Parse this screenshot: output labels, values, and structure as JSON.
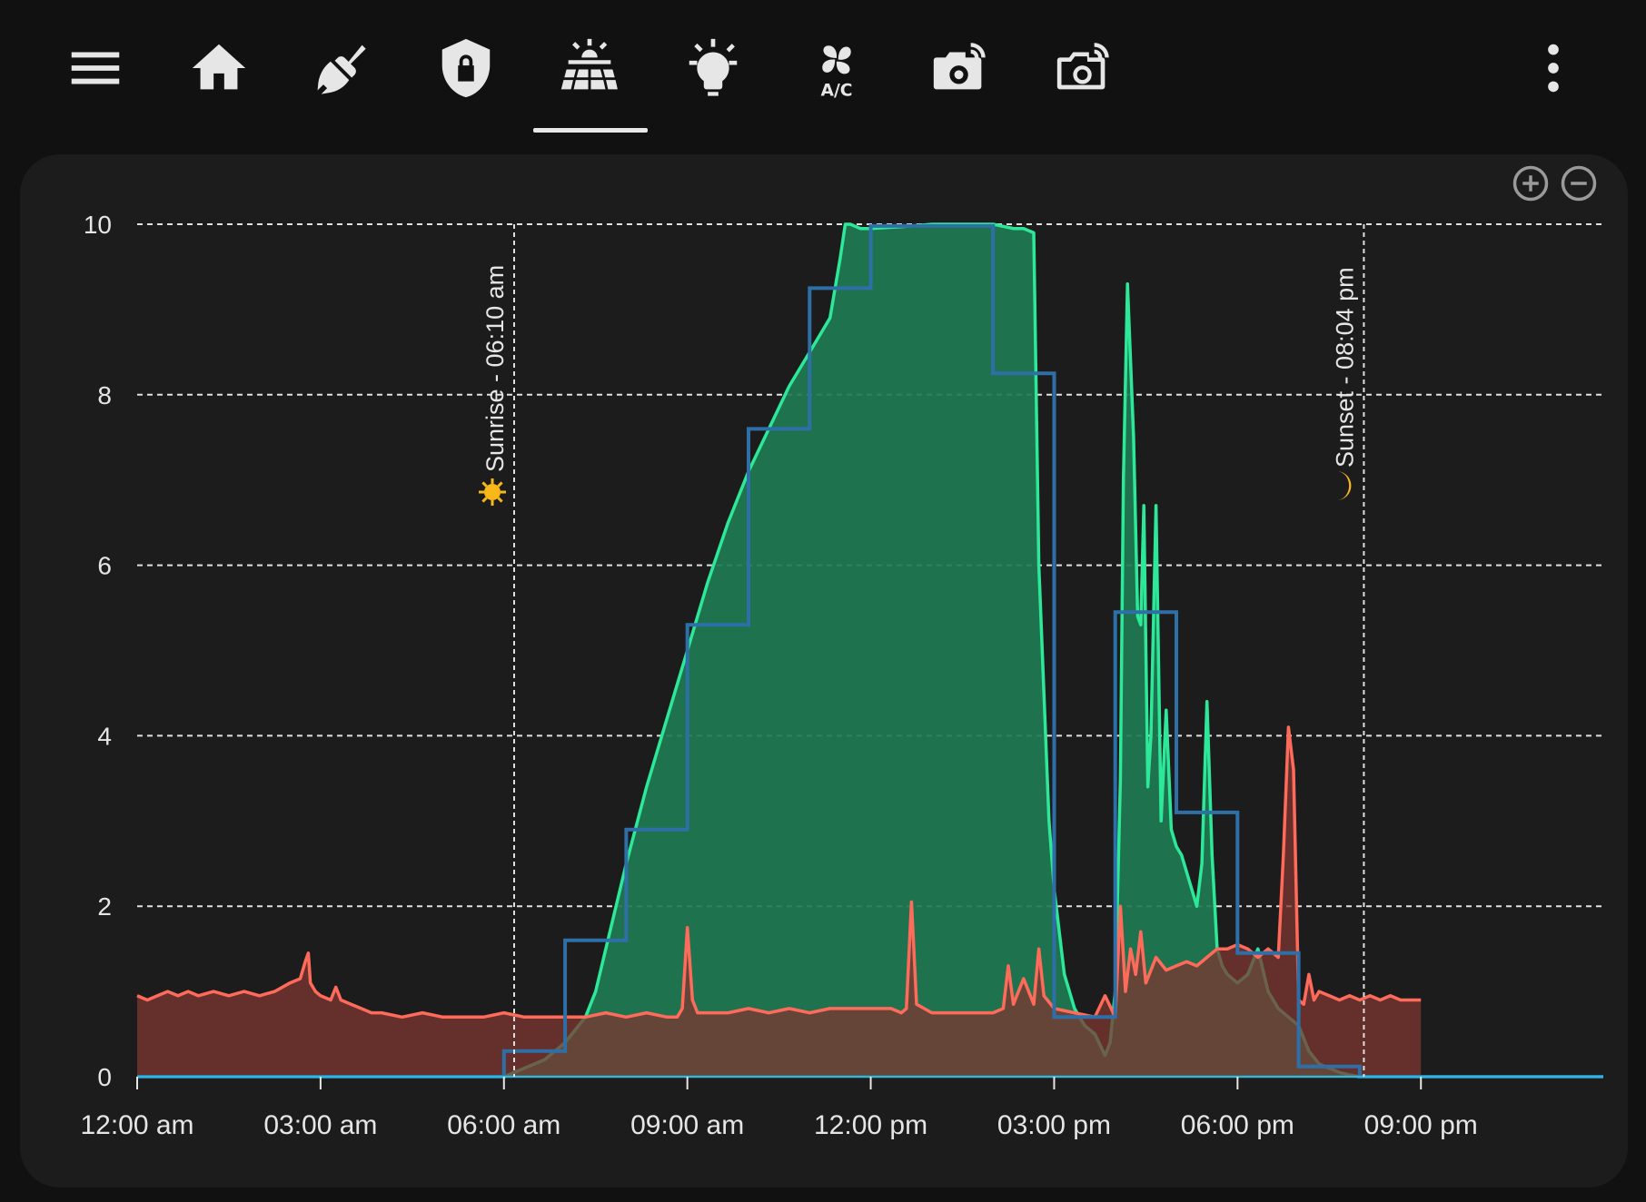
{
  "toolbar": {
    "menu_icon": "hamburger-menu-icon",
    "tabs": [
      {
        "name": "home",
        "icon": "home-icon"
      },
      {
        "name": "cleaning",
        "icon": "broom-icon"
      },
      {
        "name": "security",
        "icon": "shield-lock-icon"
      },
      {
        "name": "solar",
        "icon": "solar-panel-icon",
        "active": true
      },
      {
        "name": "lighting",
        "icon": "lightbulb-icon"
      },
      {
        "name": "climate",
        "icon": "fan-ac-icon"
      },
      {
        "name": "camera-1",
        "icon": "camera-wireless-icon"
      },
      {
        "name": "camera-2",
        "icon": "camera-wireless-outline-icon"
      }
    ],
    "overflow_icon": "more-vertical-icon",
    "accent_color": "#e8e8e8"
  },
  "zoom": {
    "zoom_in_icon": "plus-circle-icon",
    "zoom_out_icon": "minus-circle-icon"
  },
  "chart_data": {
    "type": "area",
    "title": "",
    "xlabel": "",
    "ylabel": "",
    "ylim": [
      0,
      10
    ],
    "xlim": [
      "00:00",
      "23:59"
    ],
    "yticks": [
      "0",
      "2",
      "4",
      "6",
      "8",
      "10"
    ],
    "xticks": [
      "12:00 am",
      "03:00 am",
      "06:00 am",
      "09:00 am",
      "12:00 pm",
      "03:00 pm",
      "06:00 pm",
      "09:00 pm"
    ],
    "grid": true,
    "legend": "none",
    "markers": [
      {
        "label": "Sunrise - 06:10 am",
        "time": "06:10",
        "icon": "sun-icon",
        "color": "#f9b81a"
      },
      {
        "label": "Sunset - 08:04 pm",
        "time": "20:04",
        "icon": "crescent-moon-icon",
        "color": "#f9b81a"
      }
    ],
    "series": [
      {
        "color": "#2ee89a",
        "fill": "#1e7a53",
        "style": "area",
        "x": [
          "00:00",
          "06:00",
          "06:20",
          "06:40",
          "07:00",
          "07:20",
          "07:30",
          "07:40",
          "08:00",
          "08:20",
          "08:40",
          "09:00",
          "09:20",
          "09:40",
          "10:00",
          "10:20",
          "10:40",
          "11:00",
          "11:20",
          "11:30",
          "11:35",
          "11:40",
          "11:50",
          "12:00",
          "12:30",
          "13:00",
          "13:30",
          "14:00",
          "14:20",
          "14:30",
          "14:40",
          "14:45",
          "14:50",
          "14:55",
          "15:00",
          "15:10",
          "15:20",
          "15:30",
          "15:40",
          "15:50",
          "15:55",
          "16:00",
          "16:05",
          "16:08",
          "16:12",
          "16:18",
          "16:22",
          "16:25",
          "16:28",
          "16:32",
          "16:35",
          "16:40",
          "16:45",
          "16:50",
          "16:55",
          "17:00",
          "17:05",
          "17:10",
          "17:15",
          "17:20",
          "17:25",
          "17:30",
          "17:35",
          "17:40",
          "17:45",
          "17:50",
          "18:00",
          "18:10",
          "18:20",
          "18:30",
          "18:40",
          "18:50",
          "19:00",
          "19:10",
          "19:20",
          "19:30",
          "19:40",
          "19:50",
          "20:00",
          "20:04",
          "23:59"
        ],
        "y": [
          0,
          0,
          0.1,
          0.2,
          0.4,
          0.7,
          1.0,
          1.5,
          2.5,
          3.4,
          4.2,
          5.0,
          5.8,
          6.5,
          7.1,
          7.6,
          8.1,
          8.5,
          8.9,
          9.6,
          10.0,
          10.0,
          9.95,
          9.95,
          9.97,
          10.0,
          10.0,
          10.0,
          9.95,
          9.95,
          9.9,
          6.0,
          4.5,
          3.0,
          2.2,
          1.2,
          0.8,
          0.6,
          0.5,
          0.25,
          0.4,
          1.0,
          3.5,
          7.0,
          9.3,
          7.5,
          5.4,
          5.3,
          6.7,
          3.4,
          4.0,
          6.7,
          3.0,
          4.3,
          2.9,
          2.7,
          2.6,
          2.4,
          2.2,
          2.0,
          2.5,
          4.4,
          2.6,
          1.5,
          1.3,
          1.2,
          1.1,
          1.2,
          1.5,
          1.0,
          0.8,
          0.7,
          0.6,
          0.3,
          0.15,
          0.1,
          0.05,
          0.02,
          0,
          0,
          0
        ]
      },
      {
        "color": "#ff6b5b",
        "fill": "#7e3731",
        "style": "area",
        "x": [
          "00:00",
          "00:10",
          "00:20",
          "00:30",
          "00:40",
          "00:50",
          "01:00",
          "01:15",
          "01:30",
          "01:45",
          "02:00",
          "02:15",
          "02:30",
          "02:40",
          "02:45",
          "02:48",
          "02:50",
          "02:55",
          "03:00",
          "03:10",
          "03:15",
          "03:20",
          "03:30",
          "03:40",
          "03:50",
          "04:00",
          "04:20",
          "04:40",
          "05:00",
          "05:20",
          "05:40",
          "06:00",
          "06:20",
          "06:40",
          "07:00",
          "07:20",
          "07:40",
          "08:00",
          "08:20",
          "08:40",
          "08:50",
          "08:55",
          "09:00",
          "09:05",
          "09:10",
          "09:20",
          "09:40",
          "10:00",
          "10:20",
          "10:40",
          "11:00",
          "11:20",
          "11:40",
          "12:00",
          "12:20",
          "12:30",
          "12:35",
          "12:40",
          "12:45",
          "13:00",
          "13:20",
          "13:40",
          "14:00",
          "14:10",
          "14:15",
          "14:20",
          "14:30",
          "14:40",
          "14:45",
          "14:50",
          "15:00",
          "15:20",
          "15:40",
          "15:50",
          "16:00",
          "16:05",
          "16:10",
          "16:15",
          "16:20",
          "16:25",
          "16:30",
          "16:40",
          "16:50",
          "17:00",
          "17:10",
          "17:20",
          "17:30",
          "17:40",
          "17:50",
          "18:00",
          "18:10",
          "18:20",
          "18:30",
          "18:35",
          "18:40",
          "18:45",
          "18:50",
          "18:55",
          "19:00",
          "19:05",
          "19:10",
          "19:15",
          "19:20",
          "19:30",
          "19:40",
          "19:50",
          "20:00",
          "20:10",
          "20:20",
          "20:30",
          "20:40",
          "20:50",
          "21:00"
        ],
        "y": [
          0.95,
          0.9,
          0.95,
          1.0,
          0.95,
          1.0,
          0.95,
          1.0,
          0.95,
          1.0,
          0.95,
          1.0,
          1.1,
          1.15,
          1.35,
          1.45,
          1.1,
          1.0,
          0.95,
          0.9,
          1.05,
          0.9,
          0.85,
          0.8,
          0.75,
          0.75,
          0.7,
          0.75,
          0.7,
          0.7,
          0.7,
          0.75,
          0.7,
          0.7,
          0.7,
          0.7,
          0.75,
          0.7,
          0.75,
          0.7,
          0.7,
          0.8,
          1.75,
          0.9,
          0.75,
          0.75,
          0.75,
          0.8,
          0.75,
          0.8,
          0.75,
          0.8,
          0.8,
          0.8,
          0.8,
          0.75,
          0.8,
          2.05,
          0.85,
          0.75,
          0.75,
          0.75,
          0.75,
          0.8,
          1.3,
          0.85,
          1.15,
          0.85,
          1.5,
          0.95,
          0.8,
          0.75,
          0.7,
          0.95,
          0.7,
          2.0,
          1.0,
          1.5,
          1.2,
          1.7,
          1.1,
          1.4,
          1.25,
          1.3,
          1.35,
          1.3,
          1.4,
          1.5,
          1.5,
          1.55,
          1.5,
          1.4,
          1.5,
          1.45,
          1.4,
          2.6,
          4.1,
          3.6,
          0.9,
          0.85,
          1.2,
          0.9,
          1.0,
          0.95,
          0.9,
          0.95,
          0.9,
          0.95,
          0.9,
          0.95,
          0.9,
          0.9,
          0.9
        ]
      },
      {
        "color": "#2f6fa8",
        "style": "step",
        "x": [
          "00:00",
          "06:00",
          "07:00",
          "08:00",
          "09:00",
          "10:00",
          "11:00",
          "12:00",
          "13:00",
          "14:00",
          "15:00",
          "16:00",
          "17:00",
          "18:00",
          "19:00",
          "20:00",
          "21:00",
          "23:59"
        ],
        "y": [
          0,
          0.3,
          1.6,
          2.9,
          5.3,
          7.6,
          9.25,
          9.98,
          9.98,
          8.25,
          0.7,
          5.45,
          3.1,
          1.45,
          0.12,
          0,
          0,
          0
        ]
      }
    ]
  }
}
